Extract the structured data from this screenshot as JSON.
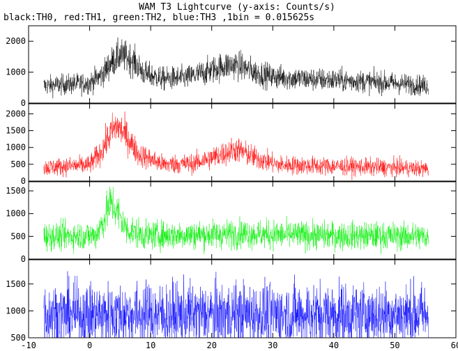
{
  "chart_data": {
    "type": "line",
    "title": "WAM T3 Lightcurve (y-axis: Counts/s)",
    "subtitle": "black:TH0, red:TH1, green:TH2, blue:TH3 ,1bin = 0.015625s",
    "xlabel": "",
    "ylabel": "",
    "x_range": [
      -10,
      60
    ],
    "x_ticks": [
      -10,
      0,
      10,
      20,
      30,
      40,
      50,
      60
    ],
    "x_tick_labels": [
      "-10",
      "0",
      "10",
      "20",
      "30",
      "40",
      "50",
      "60"
    ],
    "data_x_range": [
      -7.5,
      55.5
    ],
    "grid": false,
    "panels": [
      {
        "name": "TH0",
        "color": "#000000",
        "ylim": [
          0,
          2500
        ],
        "y_ticks": [
          0,
          1000,
          2000
        ],
        "y_tick_labels": [
          "0",
          "1000",
          "2000"
        ],
        "profile": [
          [
            -7.5,
            560
          ],
          [
            0,
            650
          ],
          [
            2,
            900
          ],
          [
            3.5,
            1300
          ],
          [
            5,
            1550
          ],
          [
            7,
            1400
          ],
          [
            9,
            950
          ],
          [
            12,
            780
          ],
          [
            16,
            820
          ],
          [
            19,
            1000
          ],
          [
            22,
            1200
          ],
          [
            24,
            1250
          ],
          [
            27,
            1000
          ],
          [
            30,
            850
          ],
          [
            35,
            780
          ],
          [
            40,
            740
          ],
          [
            45,
            700
          ],
          [
            50,
            640
          ],
          [
            55.5,
            560
          ]
        ],
        "noise": 180
      },
      {
        "name": "TH1",
        "color": "#ff0000",
        "ylim": [
          0,
          2300
        ],
        "y_ticks": [
          0,
          500,
          1000,
          1500,
          2000
        ],
        "y_tick_labels": [
          "0",
          "500",
          "1000",
          "1500",
          "2000"
        ],
        "profile": [
          [
            -7.5,
            400
          ],
          [
            0,
            480
          ],
          [
            2,
            900
          ],
          [
            3.5,
            1450
          ],
          [
            4.5,
            1650
          ],
          [
            6,
            1350
          ],
          [
            8,
            800
          ],
          [
            12,
            500
          ],
          [
            17,
            520
          ],
          [
            21,
            750
          ],
          [
            24,
            950
          ],
          [
            27,
            700
          ],
          [
            31,
            480
          ],
          [
            40,
            440
          ],
          [
            50,
            400
          ],
          [
            55.5,
            360
          ]
        ],
        "noise": 170
      },
      {
        "name": "TH2",
        "color": "#00ee00",
        "ylim": [
          0,
          1700
        ],
        "y_ticks": [
          0,
          500,
          1000,
          1500
        ],
        "y_tick_labels": [
          "0",
          "500",
          "1000",
          "1500"
        ],
        "profile": [
          [
            -7.5,
            500
          ],
          [
            1,
            520
          ],
          [
            2.5,
            900
          ],
          [
            3.5,
            1250
          ],
          [
            4.5,
            1050
          ],
          [
            6,
            650
          ],
          [
            9,
            520
          ],
          [
            20,
            540
          ],
          [
            25,
            560
          ],
          [
            35,
            520
          ],
          [
            45,
            510
          ],
          [
            55.5,
            500
          ]
        ],
        "noise": 180
      },
      {
        "name": "TH3",
        "color": "#0000ff",
        "ylim": [
          500,
          1950
        ],
        "y_ticks": [
          500,
          1000,
          1500
        ],
        "y_tick_labels": [
          "500",
          "1000",
          "1500"
        ],
        "profile": [
          [
            -7.5,
            930
          ],
          [
            55.5,
            930
          ]
        ],
        "noise": 260
      }
    ]
  }
}
